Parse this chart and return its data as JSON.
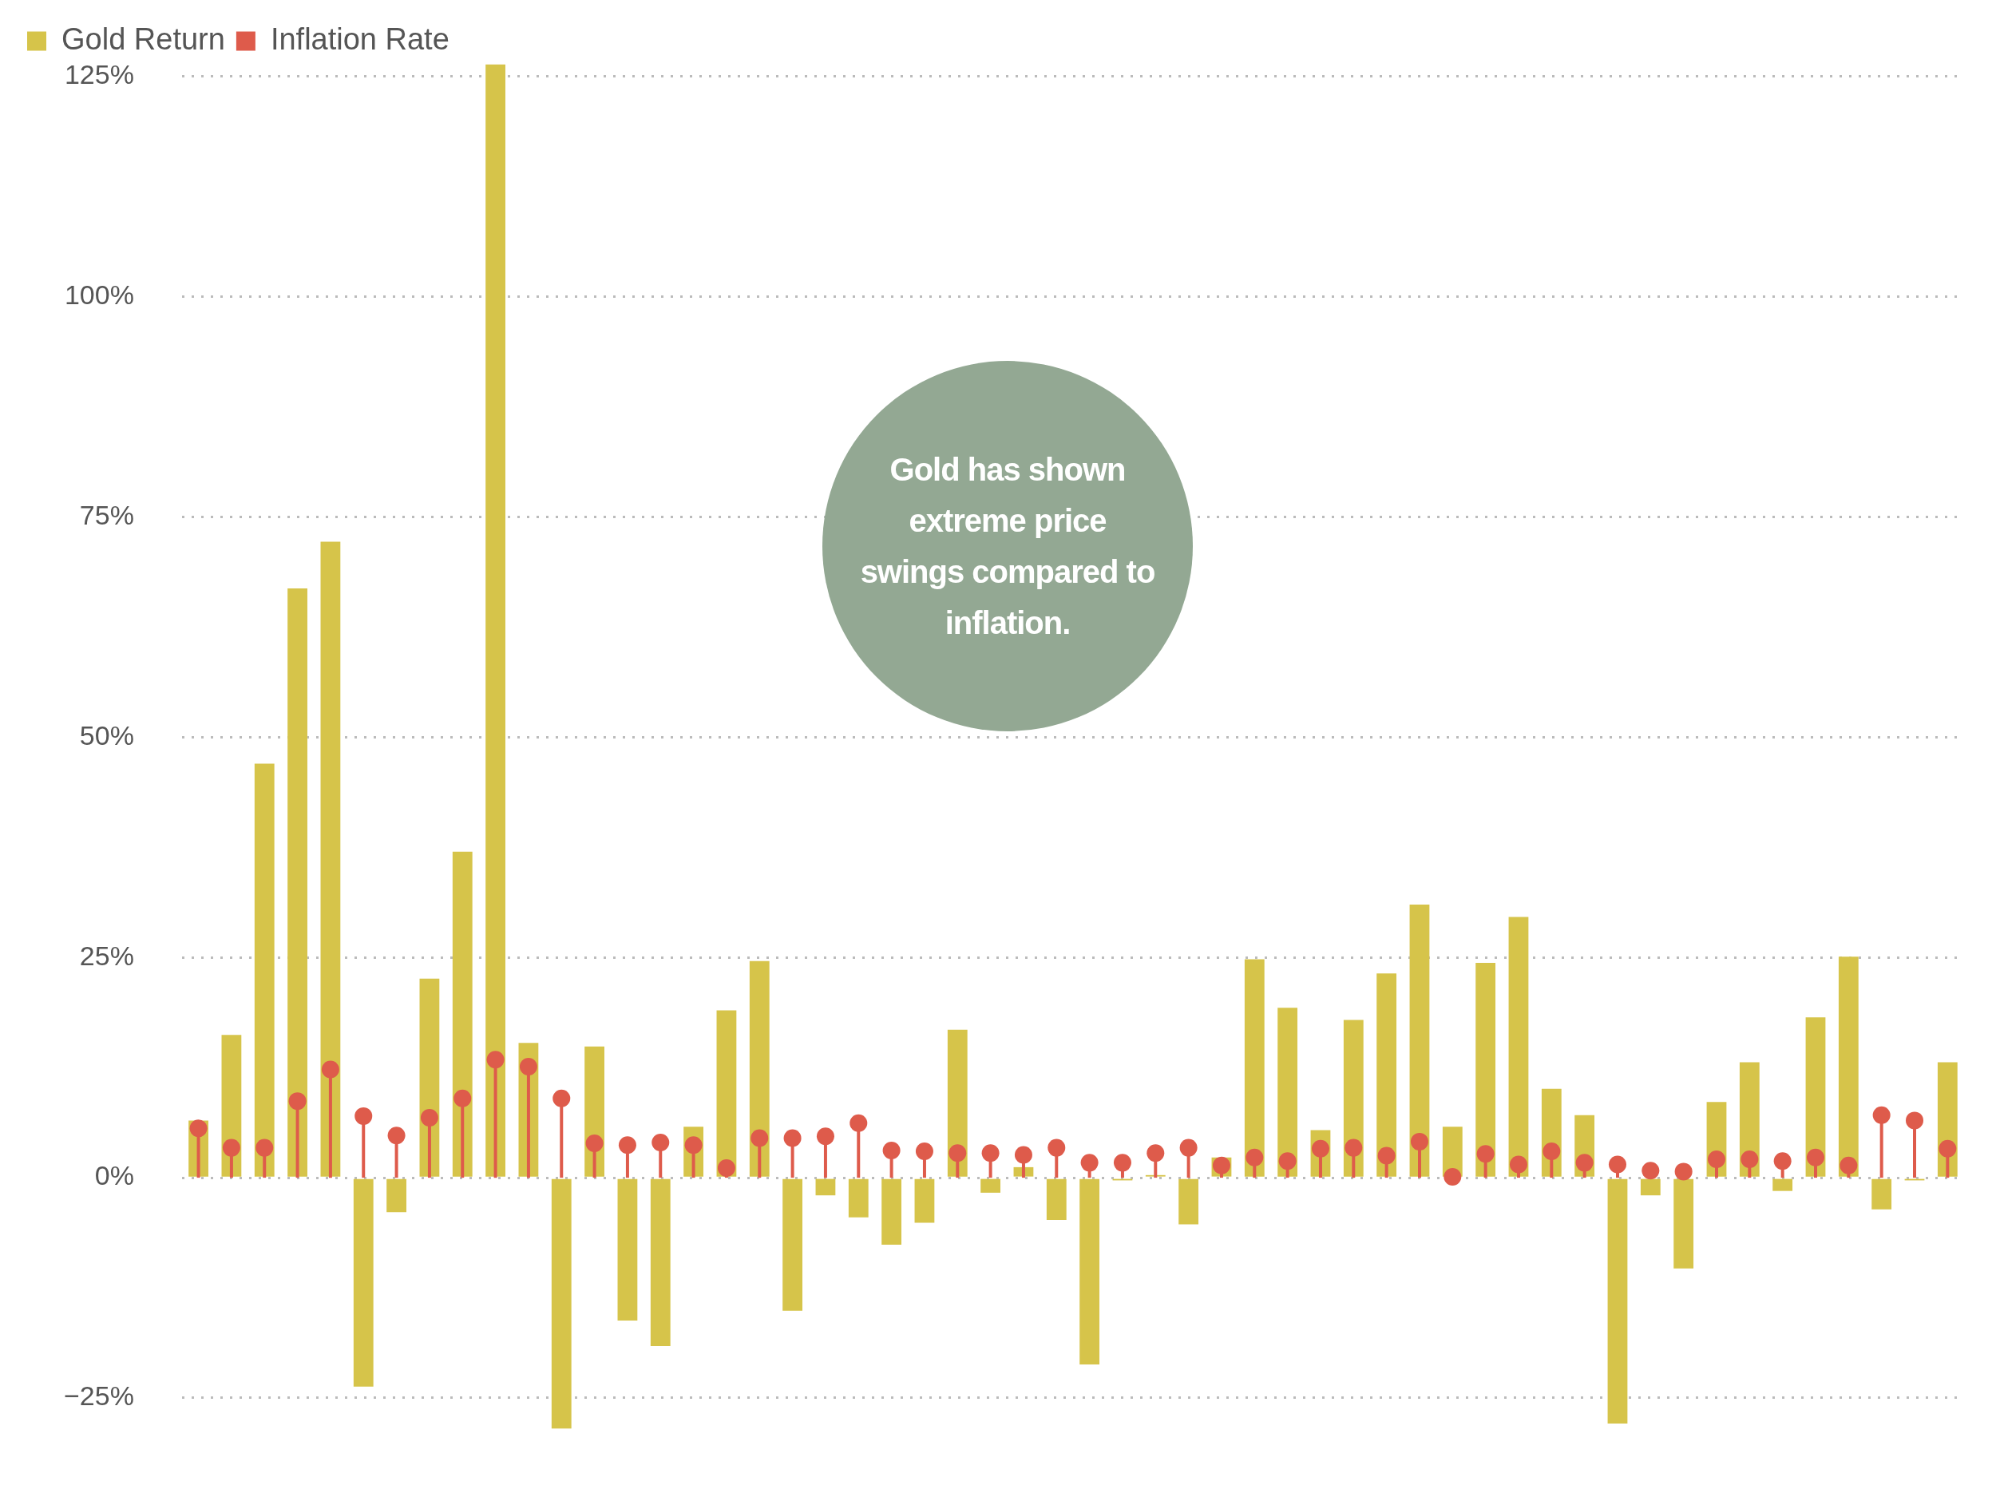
{
  "chart_data": {
    "type": "bar",
    "categories": [
      null,
      null,
      null,
      null,
      null,
      null,
      null,
      null,
      null,
      null,
      null,
      null,
      null,
      null,
      null,
      null,
      null,
      null,
      null,
      null,
      null,
      null,
      null,
      null,
      null,
      null,
      null,
      null,
      null,
      null,
      null,
      null,
      null,
      null,
      null,
      null,
      null,
      null,
      null,
      null,
      null,
      null,
      null,
      null,
      null,
      null,
      null,
      null,
      null,
      null,
      null,
      null,
      null,
      null
    ],
    "series": [
      {
        "name": "Gold Return",
        "color": "#d6c44a",
        "values": [
          6.5,
          16.2,
          47,
          66.9,
          72.2,
          -23.7,
          -3.9,
          22.6,
          37,
          126.4,
          15.3,
          -28.5,
          14.9,
          -16.2,
          -19.1,
          5.8,
          19,
          24.6,
          -15.1,
          -2,
          -4.5,
          -7.6,
          -5.1,
          16.8,
          -1.7,
          1.2,
          -4.8,
          -21.2,
          -0.3,
          0.3,
          -5.3,
          2.3,
          24.8,
          19.3,
          5.4,
          17.9,
          23.2,
          31,
          5.8,
          24.4,
          29.6,
          10.1,
          7.1,
          -27.9,
          -2,
          -10.3,
          8.6,
          13.1,
          -1.5,
          18.2,
          25.1,
          -3.6,
          -0.3,
          13.1
        ]
      },
      {
        "name": "Inflation Rate",
        "type": "lollipop",
        "color": "#de5b4b",
        "values": [
          5.6,
          3.4,
          3.4,
          8.7,
          12.3,
          7,
          4.8,
          6.8,
          9,
          13.4,
          12.6,
          9,
          3.9,
          3.7,
          4,
          3.7,
          1.1,
          4.5,
          4.5,
          4.7,
          6.2,
          3.1,
          3,
          2.8,
          2.8,
          2.6,
          3.4,
          1.7,
          1.7,
          2.8,
          3.4,
          1.4,
          2.3,
          1.9,
          3.3,
          3.4,
          2.5,
          4.1,
          0.1,
          2.7,
          1.5,
          3,
          1.7,
          1.5,
          0.8,
          0.7,
          2.1,
          2.1,
          1.9,
          2.3,
          1.4,
          7.1,
          6.5,
          3.3
        ]
      }
    ],
    "ylim": [
      -28.5,
      126.4
    ],
    "yticks": [
      {
        "value": -25,
        "label": "−25%"
      },
      {
        "value": 0,
        "label": "0%"
      },
      {
        "value": 25,
        "label": "25%"
      },
      {
        "value": 50,
        "label": "50%"
      },
      {
        "value": 75,
        "label": "75%"
      },
      {
        "value": 100,
        "label": "100%"
      },
      {
        "value": 125,
        "label": "125%"
      }
    ],
    "grid": "y",
    "legend": "top left",
    "marker": "circle",
    "tick_labels": "y",
    "annotations": [
      "Gold has shown extreme price swings compared to inflation."
    ]
  }
}
